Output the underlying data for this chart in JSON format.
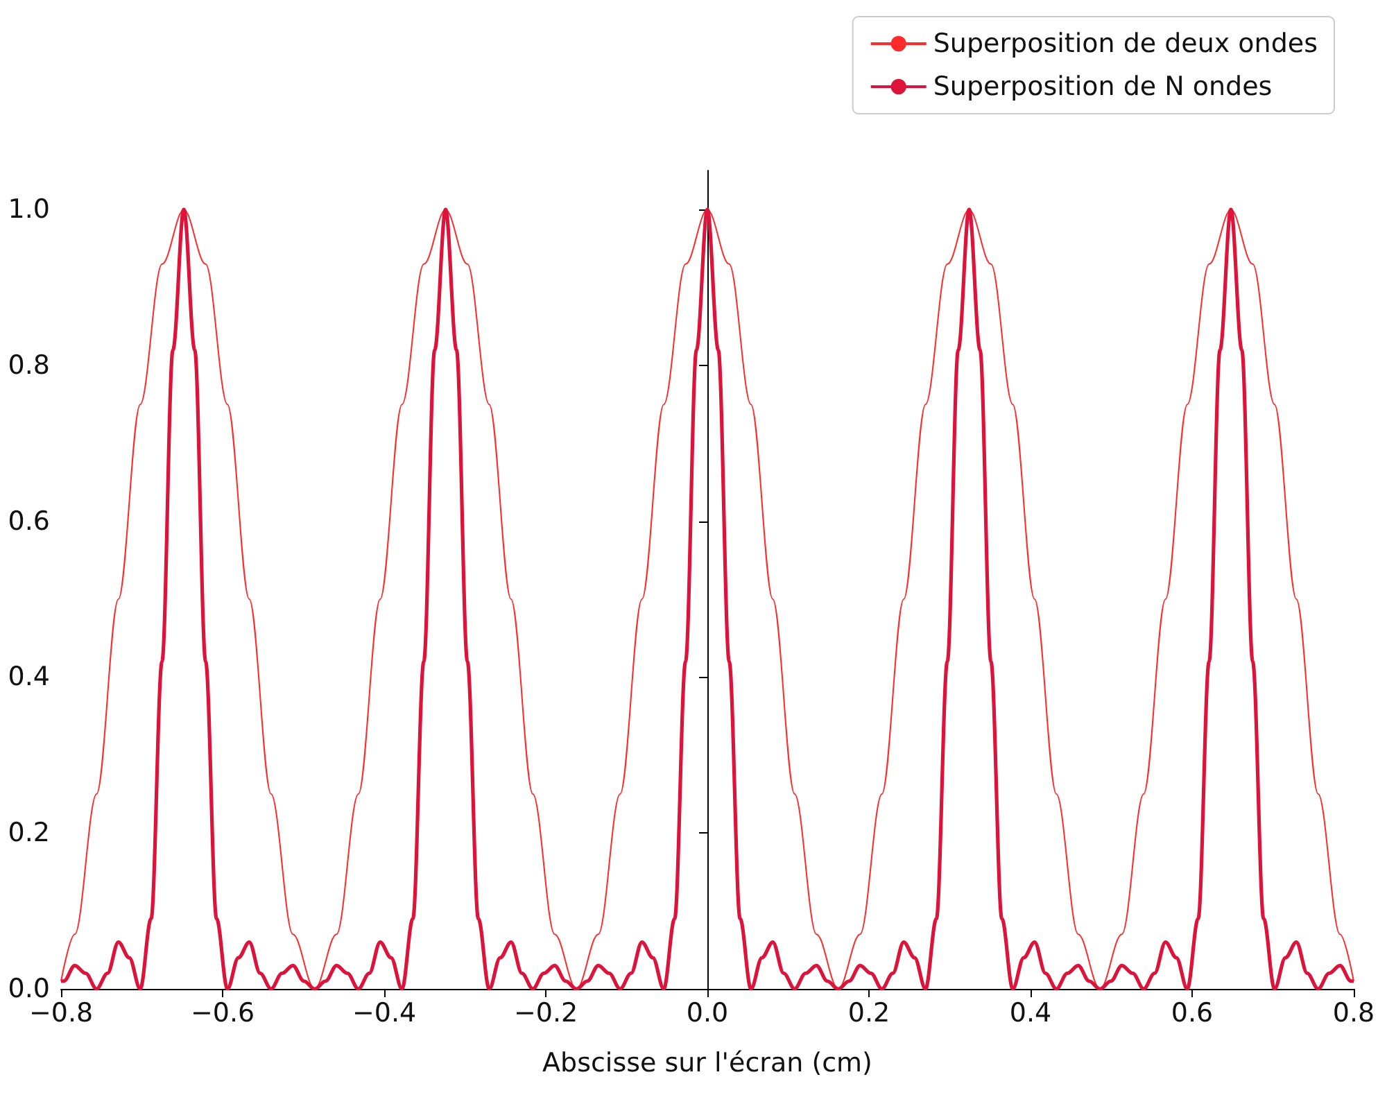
{
  "chart_data": {
    "type": "line",
    "xlabel": "Abscisse sur l'écran (cm)",
    "legend": "top right",
    "xlim": [
      -0.8,
      0.8
    ],
    "ylim": [
      0,
      1.05
    ],
    "xticks": [
      {
        "value": -0.8,
        "label": "−0.8"
      },
      {
        "value": -0.6,
        "label": "−0.6"
      },
      {
        "value": -0.4,
        "label": "−0.4"
      },
      {
        "value": -0.2,
        "label": "−0.2"
      },
      {
        "value": 0,
        "label": "0.0"
      },
      {
        "value": 0.2,
        "label": "0.2"
      },
      {
        "value": 0.4,
        "label": "0.4"
      },
      {
        "value": 0.6,
        "label": "0.6"
      },
      {
        "value": 0.8,
        "label": "0.8"
      }
    ],
    "yticks": [
      {
        "value": 0,
        "label": "0.0"
      },
      {
        "value": 0.2,
        "label": "0.2"
      },
      {
        "value": 0.4,
        "label": "0.4"
      },
      {
        "value": 0.6,
        "label": "0.6"
      },
      {
        "value": 0.8,
        "label": "0.8"
      },
      {
        "value": 1,
        "label": "1.0"
      }
    ],
    "series": [
      {
        "name": "Superposition de deux ondes",
        "color": "#ff2a2a",
        "x": [
          -0.8,
          -0.783,
          -0.756,
          -0.729,
          -0.702,
          -0.675,
          -0.648,
          -0.621,
          -0.594,
          -0.567,
          -0.54,
          -0.513,
          -0.486,
          -0.459,
          -0.432,
          -0.405,
          -0.378,
          -0.351,
          -0.324,
          -0.297,
          -0.27,
          -0.243,
          -0.216,
          -0.189,
          -0.162,
          -0.135,
          -0.108,
          -0.081,
          -0.054,
          -0.027,
          0,
          0.027,
          0.054,
          0.081,
          0.108,
          0.135,
          0.162,
          0.189,
          0.216,
          0.243,
          0.27,
          0.297,
          0.324,
          0.351,
          0.378,
          0.405,
          0.432,
          0.459,
          0.486,
          0.513,
          0.54,
          0.567,
          0.594,
          0.621,
          0.648,
          0.675,
          0.702,
          0.729,
          0.756,
          0.783,
          0.8
        ],
        "values": [
          0.01,
          0.07,
          0.25,
          0.5,
          0.75,
          0.93,
          1,
          0.93,
          0.75,
          0.5,
          0.25,
          0.07,
          0,
          0.07,
          0.25,
          0.5,
          0.75,
          0.93,
          1,
          0.93,
          0.75,
          0.5,
          0.25,
          0.07,
          0,
          0.07,
          0.25,
          0.5,
          0.75,
          0.93,
          1,
          0.93,
          0.75,
          0.5,
          0.25,
          0.07,
          0,
          0.07,
          0.25,
          0.5,
          0.75,
          0.93,
          1,
          0.93,
          0.75,
          0.5,
          0.25,
          0.07,
          0,
          0.07,
          0.25,
          0.5,
          0.75,
          0.93,
          1,
          0.93,
          0.75,
          0.5,
          0.25,
          0.07,
          0.01
        ]
      },
      {
        "name": "Superposition de N ondes",
        "color": "#dc143c",
        "x": [
          -0.8,
          -0.7965,
          -0.783,
          -0.7695,
          -0.756,
          -0.7425,
          -0.729,
          -0.7155,
          -0.702,
          -0.6885,
          -0.675,
          -0.6615,
          -0.648,
          -0.6345,
          -0.621,
          -0.6075,
          -0.594,
          -0.5805,
          -0.567,
          -0.5535,
          -0.54,
          -0.5265,
          -0.513,
          -0.4995,
          -0.486,
          -0.4725,
          -0.459,
          -0.4455,
          -0.432,
          -0.4185,
          -0.405,
          -0.3915,
          -0.378,
          -0.3645,
          -0.351,
          -0.3375,
          -0.324,
          -0.3105,
          -0.297,
          -0.2835,
          -0.27,
          -0.2565,
          -0.243,
          -0.2295,
          -0.216,
          -0.2025,
          -0.189,
          -0.1755,
          -0.162,
          -0.1485,
          -0.135,
          -0.1215,
          -0.108,
          -0.0945,
          -0.081,
          -0.0675,
          -0.054,
          -0.0405,
          -0.027,
          -0.0135,
          0,
          0.0135,
          0.027,
          0.0405,
          0.054,
          0.0675,
          0.081,
          0.0945,
          0.108,
          0.1215,
          0.135,
          0.1485,
          0.162,
          0.1755,
          0.189,
          0.2025,
          0.216,
          0.2295,
          0.243,
          0.2565,
          0.27,
          0.2835,
          0.297,
          0.3105,
          0.324,
          0.3375,
          0.351,
          0.3645,
          0.378,
          0.3915,
          0.405,
          0.4185,
          0.432,
          0.4455,
          0.459,
          0.4725,
          0.486,
          0.4995,
          0.513,
          0.5265,
          0.54,
          0.5535,
          0.567,
          0.5805,
          0.594,
          0.6075,
          0.621,
          0.6345,
          0.648,
          0.6615,
          0.675,
          0.6885,
          0.702,
          0.7155,
          0.729,
          0.7425,
          0.756,
          0.7695,
          0.783,
          0.7965,
          0.8
        ],
        "values": [
          0.01,
          0.01,
          0.03,
          0.02,
          0,
          0.02,
          0.06,
          0.04,
          0,
          0.09,
          0.42,
          0.82,
          1,
          0.82,
          0.42,
          0.09,
          0,
          0.04,
          0.06,
          0.02,
          0,
          0.02,
          0.03,
          0.01,
          0,
          0.01,
          0.03,
          0.02,
          0,
          0.02,
          0.06,
          0.04,
          0,
          0.09,
          0.42,
          0.82,
          1,
          0.82,
          0.42,
          0.09,
          0,
          0.04,
          0.06,
          0.02,
          0,
          0.02,
          0.03,
          0.01,
          0,
          0.01,
          0.03,
          0.02,
          0,
          0.02,
          0.06,
          0.04,
          0,
          0.09,
          0.42,
          0.82,
          1,
          0.82,
          0.42,
          0.09,
          0,
          0.04,
          0.06,
          0.02,
          0,
          0.02,
          0.03,
          0.01,
          0,
          0.01,
          0.03,
          0.02,
          0,
          0.02,
          0.06,
          0.04,
          0,
          0.09,
          0.42,
          0.82,
          1,
          0.82,
          0.42,
          0.09,
          0,
          0.04,
          0.06,
          0.02,
          0,
          0.02,
          0.03,
          0.01,
          0,
          0.01,
          0.03,
          0.02,
          0,
          0.02,
          0.06,
          0.04,
          0,
          0.09,
          0.42,
          0.82,
          1,
          0.82,
          0.42,
          0.09,
          0,
          0.04,
          0.06,
          0.02,
          0,
          0.02,
          0.03,
          0.01,
          0.01
        ]
      }
    ]
  }
}
